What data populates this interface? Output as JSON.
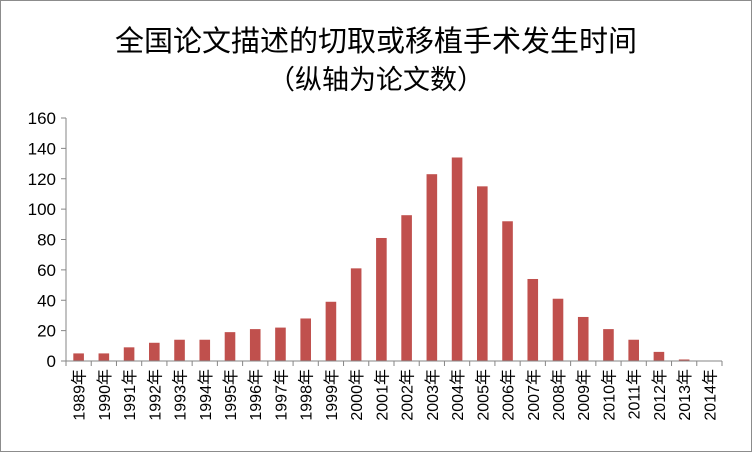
{
  "chart_data": {
    "type": "bar",
    "title": "全国论文描述的切取或移植手术发生时间",
    "subtitle": "（纵轴为论文数）",
    "xlabel": "",
    "ylabel": "",
    "ylim": [
      0,
      160
    ],
    "yticks": [
      0,
      20,
      40,
      60,
      80,
      100,
      120,
      140,
      160
    ],
    "grid": false,
    "legend": "none",
    "bar_color": "#C0504D",
    "categories": [
      "1989年",
      "1990年",
      "1991年",
      "1992年",
      "1993年",
      "1994年",
      "1995年",
      "1996年",
      "1997年",
      "1998年",
      "1999年",
      "2000年",
      "2001年",
      "2002年",
      "2003年",
      "2004年",
      "2005年",
      "2006年",
      "2007年",
      "2008年",
      "2009年",
      "2010年",
      "2011年",
      "2012年",
      "2013年",
      "2014年"
    ],
    "values": [
      5,
      5,
      9,
      12,
      14,
      14,
      19,
      21,
      22,
      28,
      39,
      61,
      81,
      96,
      123,
      134,
      115,
      92,
      54,
      41,
      29,
      21,
      14,
      6,
      1,
      0
    ]
  }
}
